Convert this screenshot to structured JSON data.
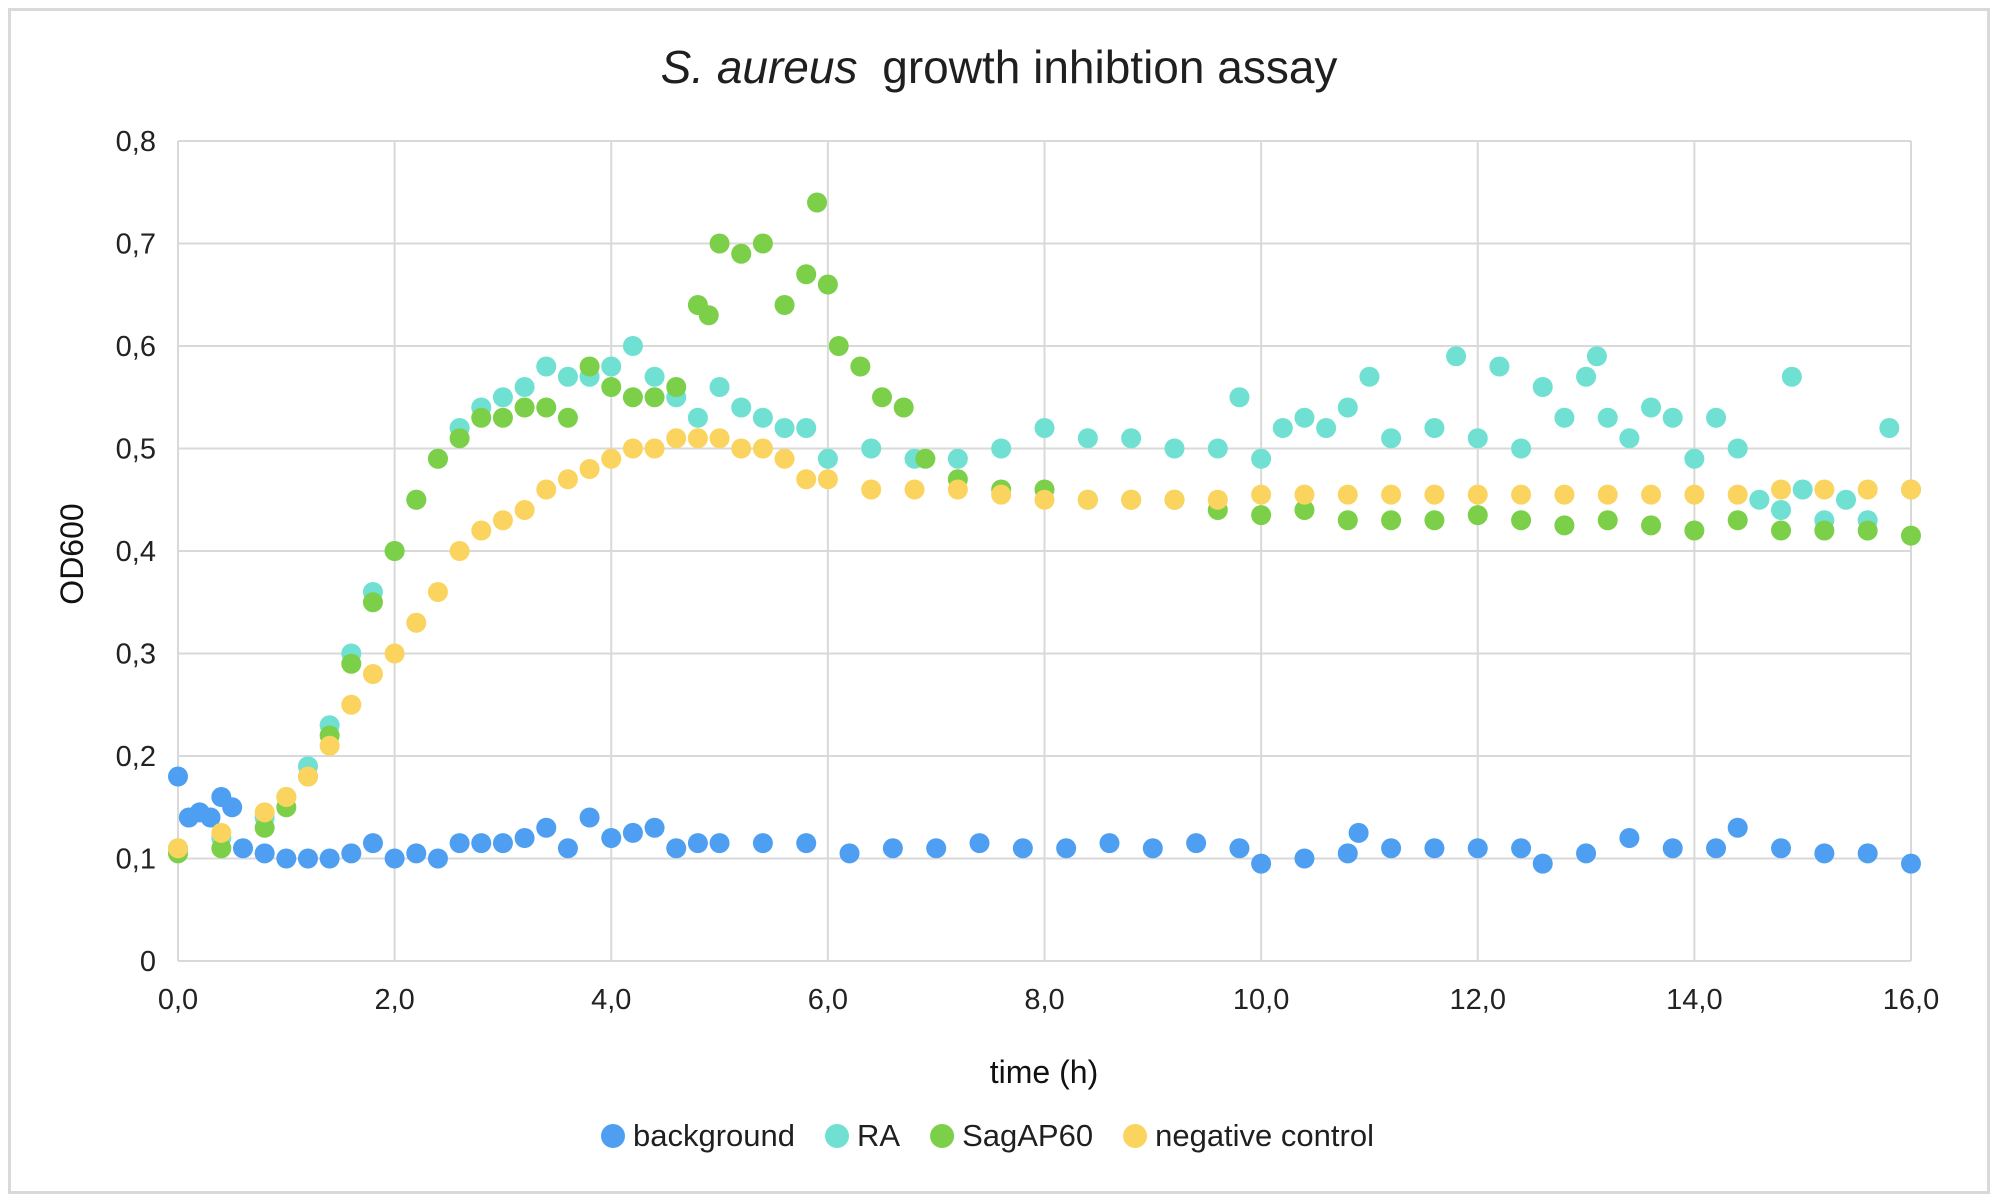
{
  "chart_data": {
    "type": "scatter",
    "title_italic": "S. aureus",
    "title_rest": "growth inhibtion assay",
    "xlabel": "time (h)",
    "ylabel": "OD600",
    "xlim": [
      0,
      16
    ],
    "ylim": [
      0,
      0.8
    ],
    "x_ticks": [
      "0,0",
      "2,0",
      "4,0",
      "6,0",
      "8,0",
      "10,0",
      "12,0",
      "14,0",
      "16,0"
    ],
    "y_ticks": [
      "0",
      "0,1",
      "0,2",
      "0,3",
      "0,4",
      "0,5",
      "0,6",
      "0,7",
      "0,8"
    ],
    "grid": true,
    "legend_position": "bottom",
    "series": [
      {
        "name": "background",
        "color": "#4e9ff2",
        "x": [
          0.0,
          0.1,
          0.2,
          0.3,
          0.4,
          0.5,
          0.6,
          0.8,
          1.0,
          1.2,
          1.4,
          1.6,
          1.8,
          2.0,
          2.2,
          2.4,
          2.6,
          2.8,
          3.0,
          3.2,
          3.4,
          3.6,
          3.8,
          4.0,
          4.2,
          4.4,
          4.6,
          4.8,
          5.0,
          5.4,
          5.8,
          6.2,
          6.6,
          7.0,
          7.4,
          7.8,
          8.2,
          8.6,
          9.0,
          9.4,
          9.8,
          10.0,
          10.4,
          10.8,
          10.9,
          11.2,
          11.6,
          12.0,
          12.4,
          12.6,
          13.0,
          13.4,
          13.8,
          14.2,
          14.4,
          14.8,
          15.2,
          15.6,
          16.0
        ],
        "values": [
          0.18,
          0.14,
          0.145,
          0.14,
          0.16,
          0.15,
          0.11,
          0.105,
          0.1,
          0.1,
          0.1,
          0.105,
          0.115,
          0.1,
          0.105,
          0.1,
          0.115,
          0.115,
          0.115,
          0.12,
          0.13,
          0.11,
          0.14,
          0.12,
          0.125,
          0.13,
          0.11,
          0.115,
          0.115,
          0.115,
          0.115,
          0.105,
          0.11,
          0.11,
          0.115,
          0.11,
          0.11,
          0.115,
          0.11,
          0.115,
          0.11,
          0.095,
          0.1,
          0.105,
          0.125,
          0.11,
          0.11,
          0.11,
          0.11,
          0.095,
          0.105,
          0.12,
          0.11,
          0.11,
          0.13,
          0.11,
          0.105,
          0.105,
          0.095
        ]
      },
      {
        "name": "RA",
        "color": "#6fe0d2",
        "x": [
          0.0,
          0.4,
          0.8,
          1.0,
          1.2,
          1.4,
          1.6,
          1.8,
          2.0,
          2.2,
          2.4,
          2.6,
          2.8,
          3.0,
          3.2,
          3.4,
          3.6,
          3.8,
          4.0,
          4.2,
          4.4,
          4.6,
          4.8,
          5.0,
          5.2,
          5.4,
          5.6,
          5.8,
          6.0,
          6.4,
          6.8,
          7.2,
          7.6,
          8.0,
          8.4,
          8.8,
          9.2,
          9.6,
          9.8,
          10.0,
          10.2,
          10.4,
          10.6,
          10.8,
          11.0,
          11.2,
          11.6,
          11.8,
          12.0,
          12.2,
          12.4,
          12.6,
          12.8,
          13.0,
          13.1,
          13.2,
          13.4,
          13.6,
          13.8,
          14.0,
          14.2,
          14.4,
          14.6,
          14.8,
          14.9,
          15.0,
          15.2,
          15.4,
          15.6,
          15.8,
          16.0
        ],
        "values": [
          0.11,
          0.12,
          0.14,
          0.16,
          0.19,
          0.23,
          0.3,
          0.36,
          0.4,
          0.45,
          0.49,
          0.52,
          0.54,
          0.55,
          0.56,
          0.58,
          0.57,
          0.57,
          0.58,
          0.6,
          0.57,
          0.55,
          0.53,
          0.56,
          0.54,
          0.53,
          0.52,
          0.52,
          0.49,
          0.5,
          0.49,
          0.49,
          0.5,
          0.52,
          0.51,
          0.51,
          0.5,
          0.5,
          0.55,
          0.49,
          0.52,
          0.53,
          0.52,
          0.54,
          0.57,
          0.51,
          0.52,
          0.59,
          0.51,
          0.58,
          0.5,
          0.56,
          0.53,
          0.57,
          0.59,
          0.53,
          0.51,
          0.54,
          0.53,
          0.49,
          0.53,
          0.5,
          0.45,
          0.44,
          0.57,
          0.46,
          0.43,
          0.45,
          0.43,
          0.52,
          0.46
        ]
      },
      {
        "name": "SagAP60",
        "color": "#7ccf48",
        "x": [
          0.0,
          0.4,
          0.8,
          1.0,
          1.2,
          1.4,
          1.6,
          1.8,
          2.0,
          2.2,
          2.4,
          2.6,
          2.8,
          3.0,
          3.2,
          3.4,
          3.6,
          3.8,
          4.0,
          4.2,
          4.4,
          4.6,
          4.8,
          4.9,
          5.0,
          5.2,
          5.4,
          5.6,
          5.8,
          5.9,
          6.0,
          6.1,
          6.3,
          6.5,
          6.7,
          6.9,
          7.2,
          7.6,
          8.0,
          8.4,
          8.8,
          9.2,
          9.6,
          10.0,
          10.4,
          10.8,
          11.2,
          11.6,
          12.0,
          12.4,
          12.8,
          13.2,
          13.6,
          14.0,
          14.4,
          14.8,
          15.2,
          15.6,
          16.0
        ],
        "values": [
          0.105,
          0.11,
          0.13,
          0.15,
          0.18,
          0.22,
          0.29,
          0.35,
          0.4,
          0.45,
          0.49,
          0.51,
          0.53,
          0.53,
          0.54,
          0.54,
          0.53,
          0.58,
          0.56,
          0.55,
          0.55,
          0.56,
          0.64,
          0.63,
          0.7,
          0.69,
          0.7,
          0.64,
          0.67,
          0.74,
          0.66,
          0.6,
          0.58,
          0.55,
          0.54,
          0.49,
          0.47,
          0.46,
          0.46,
          0.45,
          0.45,
          0.45,
          0.44,
          0.435,
          0.44,
          0.43,
          0.43,
          0.43,
          0.435,
          0.43,
          0.425,
          0.43,
          0.425,
          0.42,
          0.43,
          0.42,
          0.42,
          0.42,
          0.415
        ]
      },
      {
        "name": "negative control",
        "color": "#fad45e",
        "x": [
          0.0,
          0.4,
          0.8,
          1.0,
          1.2,
          1.4,
          1.6,
          1.8,
          2.0,
          2.2,
          2.4,
          2.6,
          2.8,
          3.0,
          3.2,
          3.4,
          3.6,
          3.8,
          4.0,
          4.2,
          4.4,
          4.6,
          4.8,
          5.0,
          5.2,
          5.4,
          5.6,
          5.8,
          6.0,
          6.4,
          6.8,
          7.2,
          7.6,
          8.0,
          8.4,
          8.8,
          9.2,
          9.6,
          10.0,
          10.4,
          10.8,
          11.2,
          11.6,
          12.0,
          12.4,
          12.8,
          13.2,
          13.6,
          14.0,
          14.4,
          14.8,
          15.2,
          15.6,
          16.0
        ],
        "values": [
          0.11,
          0.125,
          0.145,
          0.16,
          0.18,
          0.21,
          0.25,
          0.28,
          0.3,
          0.33,
          0.36,
          0.4,
          0.42,
          0.43,
          0.44,
          0.46,
          0.47,
          0.48,
          0.49,
          0.5,
          0.5,
          0.51,
          0.51,
          0.51,
          0.5,
          0.5,
          0.49,
          0.47,
          0.47,
          0.46,
          0.46,
          0.46,
          0.455,
          0.45,
          0.45,
          0.45,
          0.45,
          0.45,
          0.455,
          0.455,
          0.455,
          0.455,
          0.455,
          0.455,
          0.455,
          0.455,
          0.455,
          0.455,
          0.455,
          0.455,
          0.46,
          0.46,
          0.46,
          0.46
        ]
      }
    ]
  }
}
